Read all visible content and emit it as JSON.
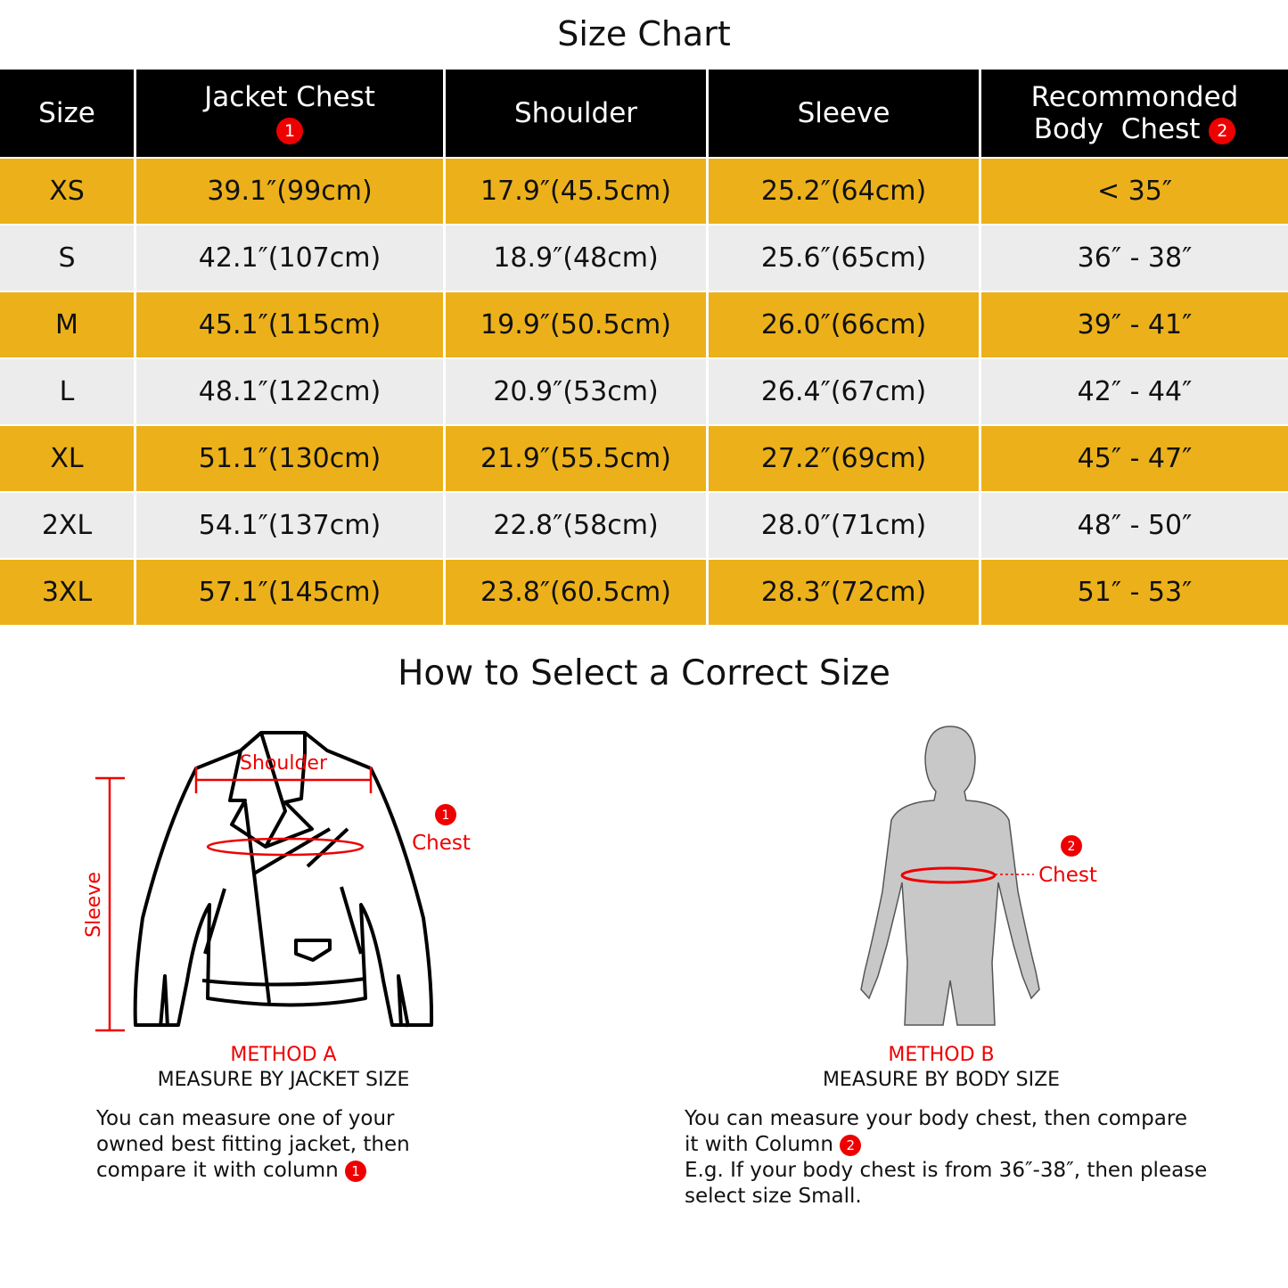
{
  "title": "Size Chart",
  "table": {
    "headers": [
      "Size",
      "Jacket Chest",
      "Shoulder",
      "Sleeve",
      "Recommonded",
      "Body  Chest"
    ],
    "header_badges": [
      "1",
      "2"
    ],
    "rows": [
      [
        "XS",
        "39.1″(99cm)",
        "17.9″(45.5cm)",
        "25.2″(64cm)",
        "< 35″"
      ],
      [
        "S",
        "42.1″(107cm)",
        "18.9″(48cm)",
        "25.6″(65cm)",
        "36″ - 38″"
      ],
      [
        "M",
        "45.1″(115cm)",
        "19.9″(50.5cm)",
        "26.0″(66cm)",
        "39″ - 41″"
      ],
      [
        "L",
        "48.1″(122cm)",
        "20.9″(53cm)",
        "26.4″(67cm)",
        "42″ - 44″"
      ],
      [
        "XL",
        "51.1″(130cm)",
        "21.9″(55.5cm)",
        "27.2″(69cm)",
        "45″ - 47″"
      ],
      [
        "2XL",
        "54.1″(137cm)",
        "22.8″(58cm)",
        "28.0″(71cm)",
        "48″ - 50″"
      ],
      [
        "3XL",
        "57.1″(145cm)",
        "23.8″(60.5cm)",
        "28.3″(72cm)",
        "51″ - 53″"
      ]
    ]
  },
  "colors": {
    "header": "#000000",
    "row_yellow": "#ecb11a",
    "row_gray": "#ececec",
    "accent_red": "#e00000"
  },
  "guide": {
    "title": "How to Select a Correct Size",
    "method_a": {
      "diagram_labels": {
        "shoulder": "Shoulder",
        "sleeve": "Sleeve",
        "chest": "Chest",
        "badge": "1"
      },
      "label": "METHOD A",
      "subtitle": "MEASURE BY JACKET SIZE",
      "text": [
        "You can measure one of your",
        "owned best fitting jacket, then",
        "compare it with column"
      ],
      "badge": "1"
    },
    "method_b": {
      "diagram_labels": {
        "chest": "Chest",
        "badge": "2"
      },
      "label": "METHOD B",
      "subtitle": "MEASURE BY BODY SIZE",
      "text": [
        "You can measure your body chest, then compare",
        "it with Column",
        "E.g. If your body chest is from 36″-38″, then please",
        "select size Small."
      ],
      "badge": "2"
    }
  }
}
